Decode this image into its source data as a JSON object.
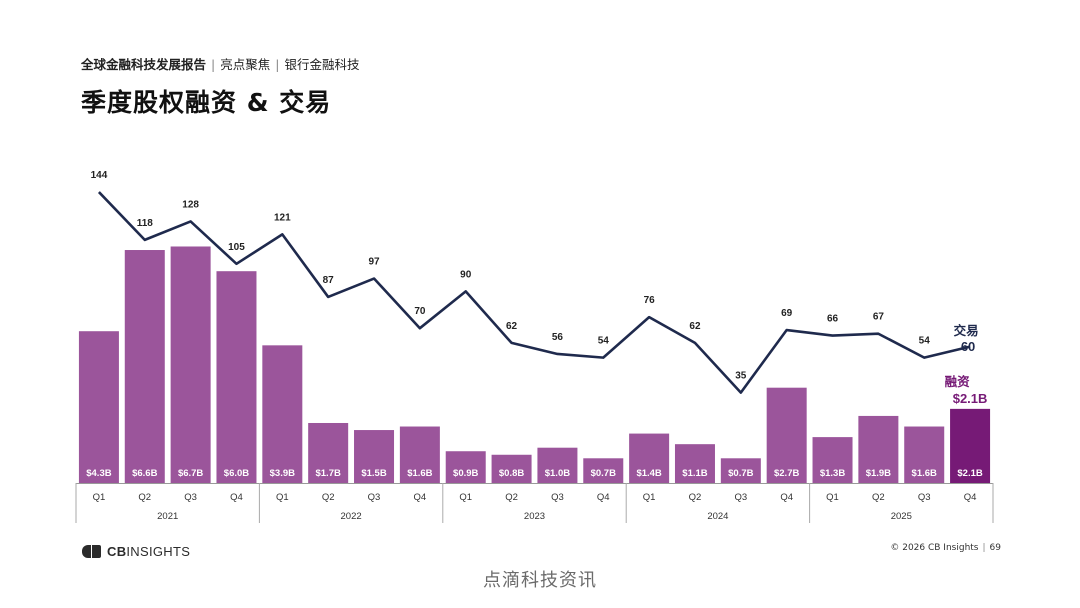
{
  "header": {
    "report_title": "全球金融科技发展报告",
    "section": "亮点聚焦",
    "subsection": "银行金融科技",
    "page_title": "季度股权融资 & 交易"
  },
  "chart_data": {
    "type": "bar",
    "years": [
      "2021",
      "2022",
      "2023",
      "2024",
      "2025"
    ],
    "categories": [
      "Q1",
      "Q2",
      "Q3",
      "Q4",
      "Q1",
      "Q2",
      "Q3",
      "Q4",
      "Q1",
      "Q2",
      "Q3",
      "Q4",
      "Q1",
      "Q2",
      "Q3",
      "Q4",
      "Q1",
      "Q2",
      "Q3",
      "Q4"
    ],
    "series": [
      {
        "name": "融资",
        "kind": "bar",
        "values": [
          4.3,
          6.6,
          6.7,
          6.0,
          3.9,
          1.7,
          1.5,
          1.6,
          0.9,
          0.8,
          1.0,
          0.7,
          1.4,
          1.1,
          0.7,
          2.7,
          1.3,
          1.9,
          1.6,
          2.1
        ],
        "labels": [
          "$4.3B",
          "$6.6B",
          "$6.7B",
          "$6.0B",
          "$3.9B",
          "$1.7B",
          "$1.5B",
          "$1.6B",
          "$0.9B",
          "$0.8B",
          "$1.0B",
          "$0.7B",
          "$1.4B",
          "$1.1B",
          "$0.7B",
          "$2.7B",
          "$1.3B",
          "$1.9B",
          "$1.6B",
          "$2.1B"
        ],
        "color": "#9b559b",
        "highlight_color": "#761a76"
      },
      {
        "name": "交易",
        "kind": "line",
        "values": [
          144,
          118,
          128,
          105,
          121,
          87,
          97,
          70,
          90,
          62,
          56,
          54,
          76,
          62,
          35,
          69,
          66,
          67,
          54,
          60
        ],
        "color": "#1f2a4d"
      }
    ],
    "end_labels": {
      "deals_name": "交易",
      "deals_value": "60",
      "funding_name": "融资",
      "funding_value": "$2.1B"
    }
  },
  "footer": {
    "logo_prefix": "CB",
    "logo_name": "INSIGHTS",
    "copyright": "© 2026 CB Insights",
    "page_number": "69"
  },
  "watermark": "点滴科技资讯"
}
